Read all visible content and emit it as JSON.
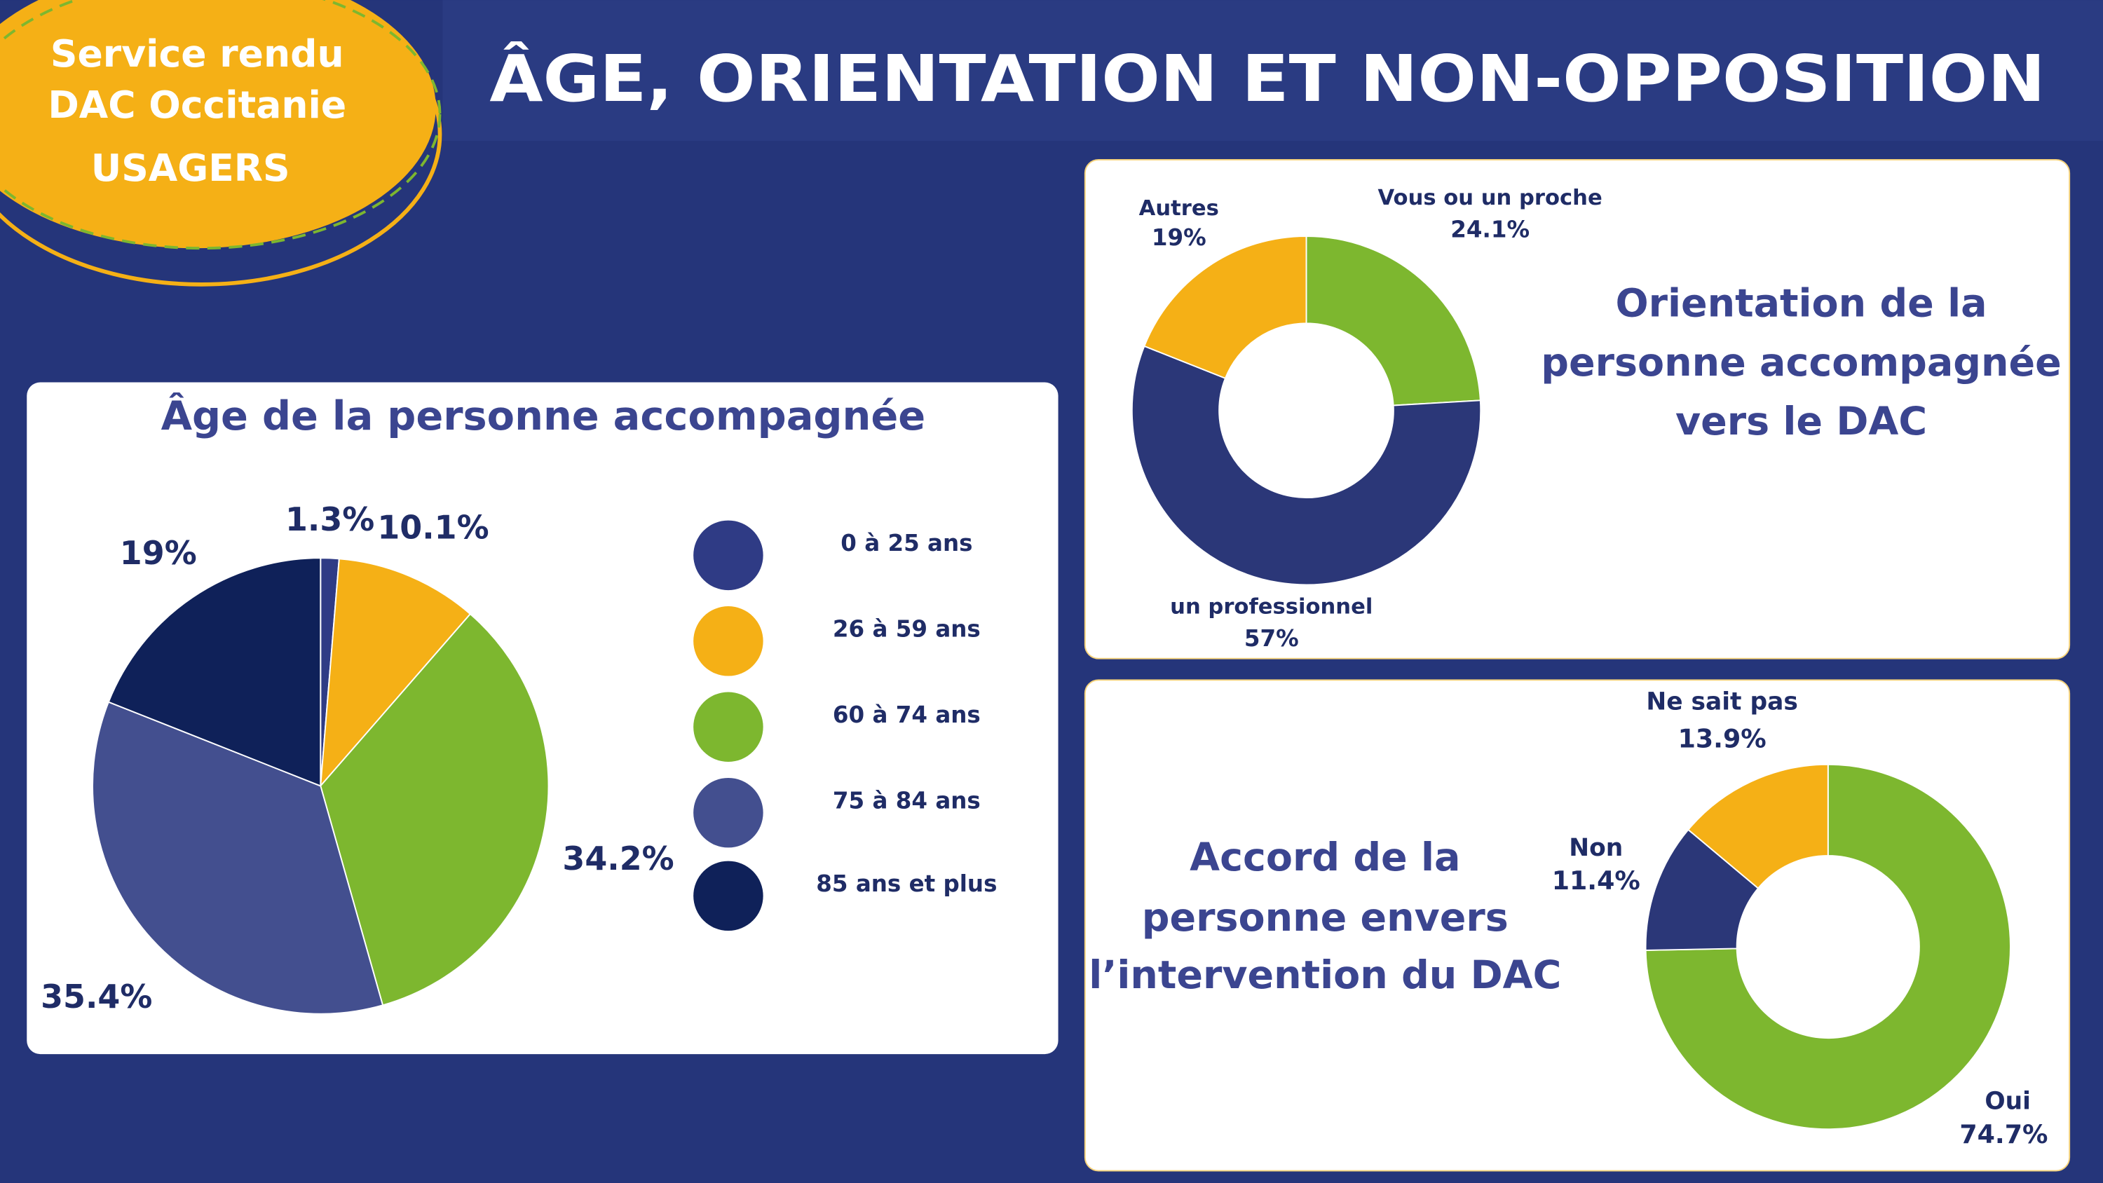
{
  "header": {
    "badge": [
      "Service rendu",
      "DAC Occitanie",
      "USAGERS"
    ],
    "title": "ÂGE, ORIENTATION ET NON-OPPOSITION"
  },
  "chart_data": [
    {
      "type": "pie",
      "title": "Âge de la personne accompagnée",
      "categories": [
        "0 à 25 ans",
        "26 à 59 ans",
        "60 à 74 ans",
        "75 à 84 ans",
        "85 ans et plus"
      ],
      "values": [
        1.3,
        10.1,
        34.2,
        35.4,
        19
      ],
      "value_labels": [
        "1.3%",
        "10.1%",
        "34.2%",
        "35.4%",
        "19%"
      ],
      "colors": [
        "#2f3b85",
        "#f5b016",
        "#7db72f",
        "#434f8f",
        "#0f2159"
      ],
      "legend": true
    },
    {
      "type": "donut",
      "title": [
        "Orientation de la",
        "personne accompagnée",
        "vers le DAC"
      ],
      "categories": [
        "Vous ou un proche",
        "un professionnel",
        "Autres"
      ],
      "values": [
        24.1,
        57,
        19
      ],
      "value_labels": [
        "24.1%",
        "57%",
        "19%"
      ],
      "colors": [
        "#7db72f",
        "#2b3778",
        "#f5b016"
      ],
      "legend": false
    },
    {
      "type": "donut",
      "title": [
        "Accord de la",
        "personne envers",
        "l’intervention du DAC"
      ],
      "categories": [
        "Oui",
        "Non",
        "Ne sait pas"
      ],
      "values": [
        74.7,
        11.4,
        13.9
      ],
      "value_labels": [
        "74.7%",
        "11.4%",
        "13.9%"
      ],
      "colors": [
        "#7db72f",
        "#2b3778",
        "#f5b016"
      ],
      "legend": false
    }
  ]
}
